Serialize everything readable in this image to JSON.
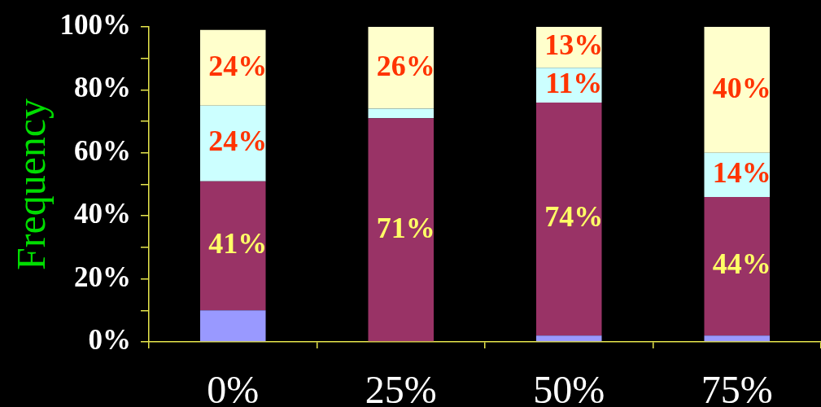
{
  "chart_data": {
    "type": "bar",
    "ylabel": "Frequency",
    "stacked": true,
    "categories": [
      "0%",
      "25%",
      "50%",
      "75%"
    ],
    "series": [
      {
        "color": "#9999ff",
        "values": [
          10,
          0,
          2,
          2
        ],
        "value_labels": [
          null,
          null,
          null,
          null
        ]
      },
      {
        "color": "#993366",
        "values": [
          41,
          71,
          74,
          44
        ],
        "value_labels": [
          "41%",
          "71%",
          "74%",
          "44%"
        ]
      },
      {
        "color": "#ccffff",
        "values": [
          24,
          3,
          11,
          14
        ],
        "value_labels": [
          "24%",
          null,
          "11%",
          "14%"
        ]
      },
      {
        "color": "#ffffcc",
        "values": [
          24,
          26,
          13,
          40
        ],
        "value_labels": [
          "24%",
          "26%",
          "13%",
          "40%"
        ]
      }
    ],
    "ylim": [
      0,
      100
    ],
    "yticks": [
      {
        "value": 0,
        "label": "0%"
      },
      {
        "value": 10,
        "label": null
      },
      {
        "value": 20,
        "label": "20%"
      },
      {
        "value": 30,
        "label": null
      },
      {
        "value": 40,
        "label": "40%"
      },
      {
        "value": 50,
        "label": null
      },
      {
        "value": 60,
        "label": "60%"
      },
      {
        "value": 70,
        "label": null
      },
      {
        "value": 80,
        "label": "80%"
      },
      {
        "value": 90,
        "label": null
      },
      {
        "value": 100,
        "label": "100%"
      }
    ]
  }
}
